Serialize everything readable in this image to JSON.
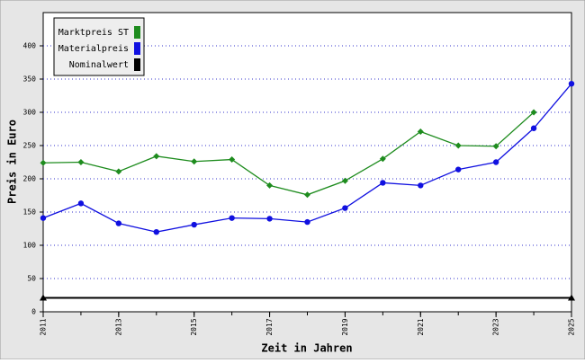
{
  "chart_data": {
    "type": "line",
    "x_label": "Zeit in Jahren",
    "y_label": "Preis in Euro",
    "x": [
      2011,
      2012,
      2013,
      2014,
      2015,
      2016,
      2017,
      2018,
      2019,
      2020,
      2021,
      2022,
      2023,
      2024,
      2025
    ],
    "xlim": [
      2011,
      2025
    ],
    "xticks": [
      2011,
      2013,
      2015,
      2017,
      2019,
      2021,
      2023,
      2025
    ],
    "ylim": [
      0,
      450
    ],
    "yticks": [
      0,
      50,
      100,
      150,
      200,
      250,
      300,
      350,
      400
    ],
    "grid": true,
    "legend": "top-left",
    "series": [
      {
        "name": "Marktpreis ST",
        "color": "#1e8c1e",
        "values": [
          224,
          225,
          211,
          234,
          226,
          229,
          190,
          176,
          197,
          230,
          271,
          250,
          249,
          300,
          null
        ]
      },
      {
        "name": "Materialpreis",
        "color": "#1010e0",
        "values": [
          141,
          163,
          133,
          120,
          131,
          141,
          140,
          135,
          156,
          194,
          190,
          214,
          225,
          276,
          343
        ]
      },
      {
        "name": "Nominalwert",
        "color": "#000000",
        "values": [
          21,
          21,
          21,
          21,
          21,
          21,
          21,
          21,
          21,
          21,
          21,
          21,
          21,
          21,
          21
        ]
      }
    ]
  }
}
